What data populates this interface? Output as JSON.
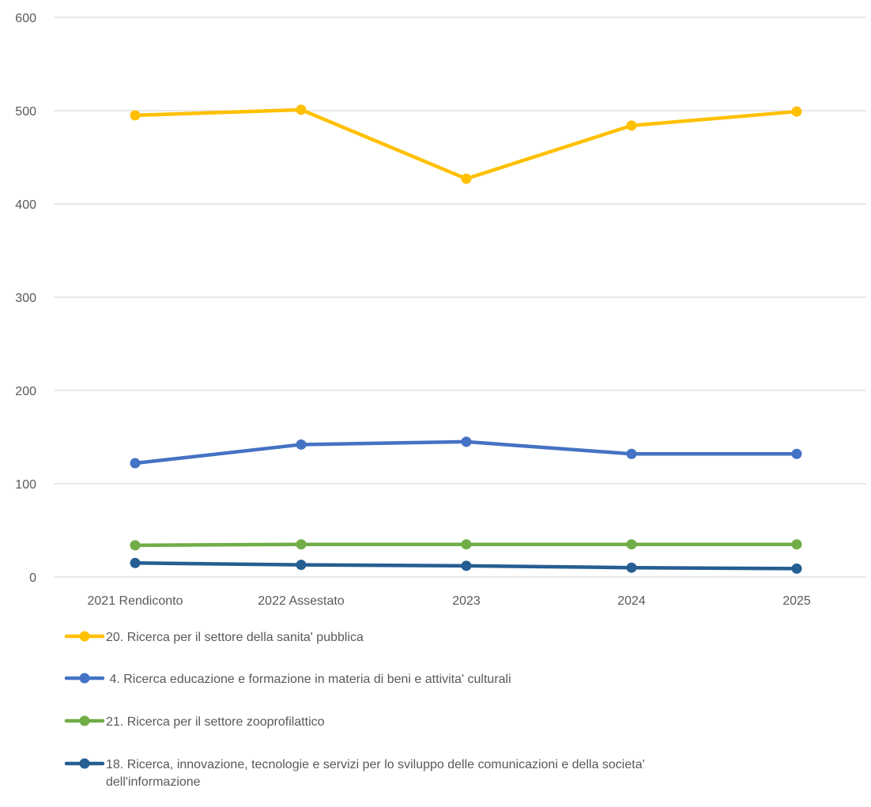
{
  "chart_data": {
    "type": "line",
    "title": "",
    "xlabel": "",
    "ylabel": "",
    "categories": [
      "2021 Rendiconto",
      "2022 Assestato",
      "2023",
      "2024",
      "2025"
    ],
    "ylim": [
      0,
      600
    ],
    "yticks": [
      0,
      100,
      200,
      300,
      400,
      500,
      600
    ],
    "grid": true,
    "legend_position": "bottom",
    "series": [
      {
        "name": "20. Ricerca per il settore della sanita' pubblica",
        "color": "#FFC000",
        "values": [
          495,
          501,
          427,
          484,
          499
        ]
      },
      {
        "name": " 4. Ricerca educazione e formazione in materia di beni e attivita' culturali",
        "color": "#4472C4",
        "values": [
          122,
          142,
          145,
          132,
          132
        ]
      },
      {
        "name": "21. Ricerca per il settore zooprofilattico",
        "color": "#70AD47",
        "values": [
          34,
          35,
          35,
          35,
          35
        ]
      },
      {
        "name": "18. Ricerca, innovazione, tecnologie e servizi per lo sviluppo delle comunicazioni e della societa' dell'informazione",
        "name_lines": [
          "18. Ricerca, innovazione, tecnologie e servizi per lo sviluppo delle comunicazioni e della societa'",
          "dell'informazione"
        ],
        "color": "#255E91",
        "values": [
          15,
          13,
          12,
          10,
          9
        ]
      }
    ]
  }
}
